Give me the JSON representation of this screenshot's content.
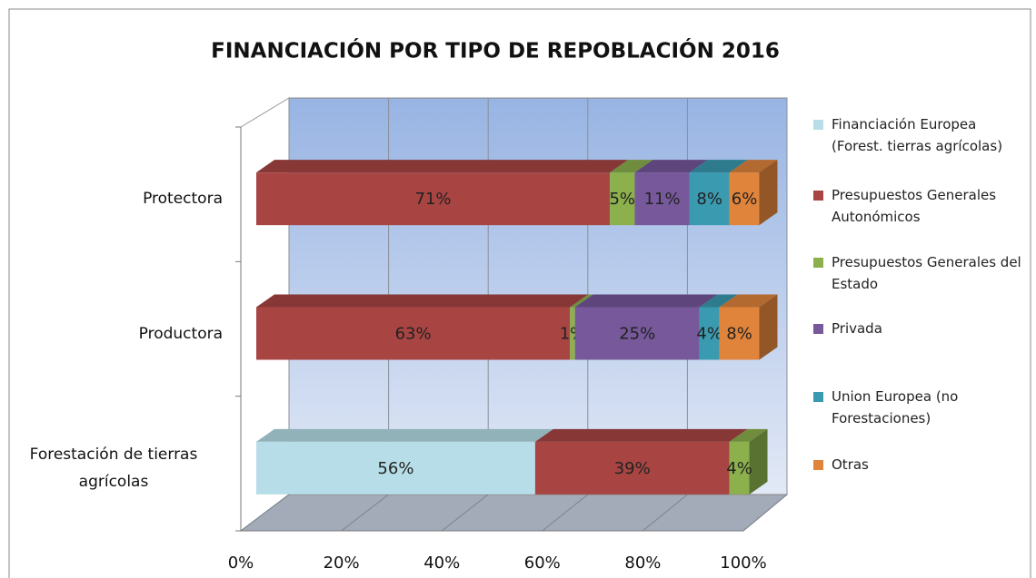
{
  "chart_data": {
    "type": "stacked-bar-3d",
    "title": "FINANCIACIÓN POR TIPO DE REPOBLACIÓN 2016",
    "categories": [
      "Protectora",
      "Productora",
      "Forestación de tierras agrícolas"
    ],
    "series": [
      {
        "name": "Financiación Europea (Forest. tierras agrícolas)",
        "color": "#b7dee8",
        "values": [
          null,
          null,
          56
        ],
        "value_labels": [
          null,
          null,
          "56%"
        ]
      },
      {
        "name": "Presupuestos Generales Autonómicos",
        "color": "#a84543",
        "values": [
          71,
          63,
          39
        ],
        "value_labels": [
          "71%",
          "63%",
          "39%"
        ]
      },
      {
        "name": "Presupuestos Generales del Estado",
        "color": "#8bb04c",
        "values": [
          5,
          1,
          4
        ],
        "value_labels": [
          "5%",
          "1%",
          "4%"
        ]
      },
      {
        "name": "Privada",
        "color": "#76589b",
        "values": [
          11,
          25,
          null
        ],
        "value_labels": [
          "11%",
          "25%",
          null
        ]
      },
      {
        "name": "Union Europea (no Forestaciones)",
        "color": "#3a9ab0",
        "values": [
          8,
          4,
          null
        ],
        "value_labels": [
          "8%",
          "4%",
          null
        ]
      },
      {
        "name": "Otras",
        "color": "#e0843c",
        "values": [
          6,
          8,
          null
        ],
        "value_labels": [
          "6%",
          "8%",
          null
        ]
      }
    ],
    "xlim": [
      0,
      100
    ],
    "xticks": [
      {
        "value": 0,
        "label": "0%"
      },
      {
        "value": 20,
        "label": "20%"
      },
      {
        "value": 40,
        "label": "40%"
      },
      {
        "value": 60,
        "label": "60%"
      },
      {
        "value": 80,
        "label": "80%"
      },
      {
        "value": 100,
        "label": "100%"
      }
    ],
    "grid": true,
    "legend": "right"
  }
}
